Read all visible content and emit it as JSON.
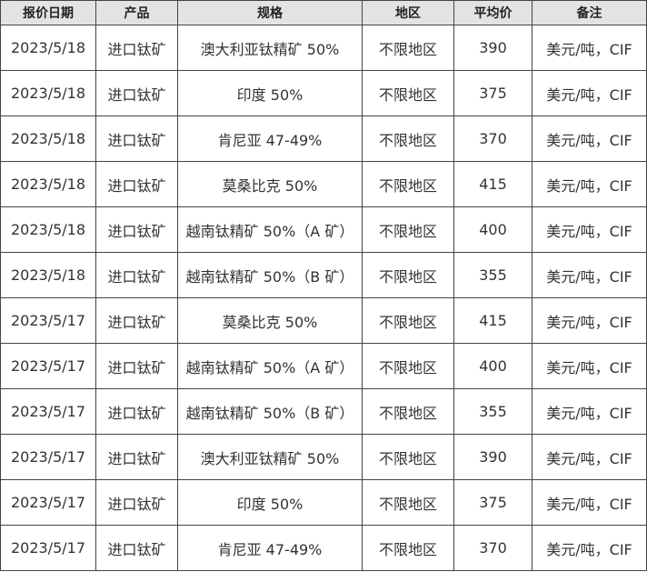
{
  "table": {
    "header": [
      "报价日期",
      "产品",
      "规格",
      "地区",
      "平均价",
      "备注"
    ],
    "rows": [
      [
        "2023/5/18",
        "进口钛矿",
        "澳大利亚钛精矿 50%",
        "不限地区",
        390,
        "美元/吨，CIF"
      ],
      [
        "2023/5/18",
        "进口钛矿",
        "印度 50%",
        "不限地区",
        375,
        "美元/吨，CIF"
      ],
      [
        "2023/5/18",
        "进口钛矿",
        "肯尼亚 47-49%",
        "不限地区",
        370,
        "美元/吨，CIF"
      ],
      [
        "2023/5/18",
        "进口钛矿",
        "莫桑比克 50%",
        "不限地区",
        415,
        "美元/吨，CIF"
      ],
      [
        "2023/5/18",
        "进口钛矿",
        "越南钛精矿 50%（A 矿）",
        "不限地区",
        400,
        "美元/吨，CIF"
      ],
      [
        "2023/5/18",
        "进口钛矿",
        "越南钛精矿 50%（B 矿）",
        "不限地区",
        355,
        "美元/吨，CIF"
      ],
      [
        "2023/5/17",
        "进口钛矿",
        "莫桑比克 50%",
        "不限地区",
        415,
        "美元/吨，CIF"
      ],
      [
        "2023/5/17",
        "进口钛矿",
        "越南钛精矿 50%（A 矿）",
        "不限地区",
        400,
        "美元/吨，CIF"
      ],
      [
        "2023/5/17",
        "进口钛矿",
        "越南钛精矿 50%（B 矿）",
        "不限地区",
        355,
        "美元/吨，CIF"
      ],
      [
        "2023/5/17",
        "进口钛矿",
        "澳大利亚钛精矿 50%",
        "不限地区",
        390,
        "美元/吨，CIF"
      ],
      [
        "2023/5/17",
        "进口钛矿",
        "印度 50%",
        "不限地区",
        375,
        "美元/吨，CIF"
      ],
      [
        "2023/5/17",
        "进口钛矿",
        "肯尼亚 47-49%",
        "不限地区",
        370,
        "美元/吨，CIF"
      ]
    ]
  }
}
